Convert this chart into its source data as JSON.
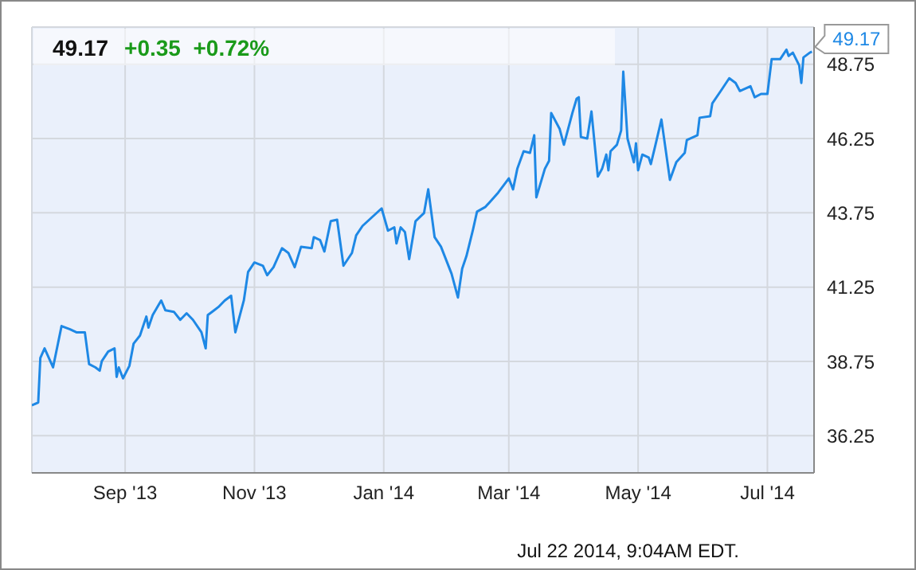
{
  "chart_data": {
    "type": "line",
    "title": "49.17",
    "subtitle": "+0.35  +0.72%",
    "x": [
      "2013-07-19",
      "2013-07-22",
      "2013-07-23",
      "2013-07-25",
      "2013-07-29",
      "2013-08-02",
      "2013-08-06",
      "2013-08-09",
      "2013-08-13",
      "2013-08-15",
      "2013-08-18",
      "2013-08-20",
      "2013-08-21",
      "2013-08-24",
      "2013-08-27",
      "2013-08-28",
      "2013-08-29",
      "2013-08-31",
      "2013-09-03",
      "2013-09-05",
      "2013-09-08",
      "2013-09-11",
      "2013-09-12",
      "2013-09-14",
      "2013-09-18",
      "2013-09-20",
      "2013-09-24",
      "2013-09-27",
      "2013-09-30",
      "2013-10-03",
      "2013-10-07",
      "2013-10-09",
      "2013-10-10",
      "2013-10-13",
      "2013-10-15",
      "2013-10-18",
      "2013-10-21",
      "2013-10-23",
      "2013-10-27",
      "2013-10-29",
      "2013-11-01",
      "2013-11-05",
      "2013-11-07",
      "2013-11-10",
      "2013-11-14",
      "2013-11-17",
      "2013-11-20",
      "2013-11-23",
      "2013-11-28",
      "2013-11-29",
      "2013-12-02",
      "2013-12-04",
      "2013-12-07",
      "2013-12-10",
      "2013-12-13",
      "2013-12-17",
      "2013-12-19",
      "2013-12-22",
      "2013-12-31",
      "2014-01-03",
      "2014-01-06",
      "2014-01-07",
      "2014-01-09",
      "2014-01-11",
      "2014-01-13",
      "2014-01-16",
      "2014-01-20",
      "2014-01-22",
      "2014-01-25",
      "2014-01-28",
      "2014-02-02",
      "2014-02-05",
      "2014-02-07",
      "2014-02-09",
      "2014-02-12",
      "2014-02-14",
      "2014-02-18",
      "2014-02-20",
      "2014-02-24",
      "2014-03-01",
      "2014-03-03",
      "2014-03-05",
      "2014-03-08",
      "2014-03-11",
      "2014-03-13",
      "2014-03-14",
      "2014-03-18",
      "2014-03-20",
      "2014-03-21",
      "2014-03-25",
      "2014-03-27",
      "2014-03-31",
      "2014-04-02",
      "2014-04-03",
      "2014-04-04",
      "2014-04-07",
      "2014-04-09",
      "2014-04-12",
      "2014-04-14",
      "2014-04-16",
      "2014-04-17",
      "2014-04-18",
      "2014-04-21",
      "2014-04-23",
      "2014-04-24",
      "2014-04-26",
      "2014-04-29",
      "2014-04-30",
      "2014-05-01",
      "2014-05-03",
      "2014-05-06",
      "2014-05-07",
      "2014-05-09",
      "2014-05-12",
      "2014-05-16",
      "2014-05-19",
      "2014-05-23",
      "2014-05-24",
      "2014-05-29",
      "2014-05-30",
      "2014-06-04",
      "2014-06-05",
      "2014-06-09",
      "2014-06-13",
      "2014-06-16",
      "2014-06-18",
      "2014-06-23",
      "2014-06-25",
      "2014-06-28",
      "2014-07-01",
      "2014-07-03",
      "2014-07-07",
      "2014-07-10",
      "2014-07-11",
      "2014-07-13",
      "2014-07-16",
      "2014-07-17",
      "2014-07-18",
      "2014-07-21",
      "2014-07-22"
    ],
    "series": [
      {
        "color": "#1e88e5",
        "values": [
          37.27,
          37.37,
          38.87,
          39.19,
          38.55,
          39.94,
          39.83,
          39.73,
          39.73,
          38.66,
          38.55,
          38.44,
          38.76,
          39.08,
          39.19,
          38.23,
          38.55,
          38.18,
          38.6,
          39.35,
          39.62,
          40.26,
          39.89,
          40.31,
          40.8,
          40.47,
          40.42,
          40.15,
          40.37,
          40.15,
          39.73,
          39.19,
          40.31,
          40.47,
          40.58,
          40.8,
          40.96,
          39.73,
          40.8,
          41.76,
          42.08,
          41.97,
          41.65,
          41.92,
          42.56,
          42.4,
          41.92,
          42.61,
          42.56,
          42.93,
          42.83,
          42.45,
          43.47,
          43.52,
          41.97,
          42.4,
          42.99,
          43.31,
          43.9,
          43.15,
          43.26,
          42.72,
          43.26,
          43.1,
          42.19,
          43.47,
          43.74,
          44.54,
          42.93,
          42.61,
          41.7,
          40.9,
          41.87,
          42.29,
          43.15,
          43.79,
          43.95,
          44.11,
          44.43,
          44.91,
          44.54,
          45.23,
          45.82,
          45.77,
          46.36,
          44.27,
          45.23,
          45.5,
          47.11,
          46.57,
          46.04,
          47.11,
          47.59,
          47.64,
          46.3,
          46.25,
          47.16,
          44.97,
          45.23,
          45.71,
          45.18,
          45.82,
          46.04,
          46.52,
          48.5,
          46.25,
          45.45,
          46.09,
          45.18,
          45.71,
          45.61,
          45.39,
          45.98,
          46.89,
          44.86,
          45.45,
          45.77,
          46.2,
          46.36,
          46.95,
          47.0,
          47.43,
          47.85,
          48.28,
          48.12,
          47.85,
          48.01,
          47.64,
          47.75,
          47.75,
          48.92,
          48.92,
          49.24,
          49.03,
          49.14,
          48.71,
          48.12,
          48.98,
          49.14,
          49.17
        ]
      }
    ],
    "xlim": [
      "2013-07-19",
      "2014-07-23"
    ],
    "xticks": [
      {
        "value": "2013-09-01",
        "label": "Sep '13"
      },
      {
        "value": "2013-11-01",
        "label": "Nov '13"
      },
      {
        "value": "2014-01-01",
        "label": "Jan '14"
      },
      {
        "value": "2014-03-01",
        "label": "Mar '14"
      },
      {
        "value": "2014-05-01",
        "label": "May '14"
      },
      {
        "value": "2014-07-01",
        "label": "Jul '14"
      }
    ],
    "ylim": [
      35,
      50
    ],
    "yticks": [
      36.25,
      38.75,
      41.25,
      43.75,
      46.25,
      48.75
    ],
    "grid": true,
    "annotations": [
      {
        "text": "49.17",
        "x": "2014-07-22",
        "y": 49.17
      },
      "Jul 22 2014, 9:04AM EDT."
    ]
  }
}
